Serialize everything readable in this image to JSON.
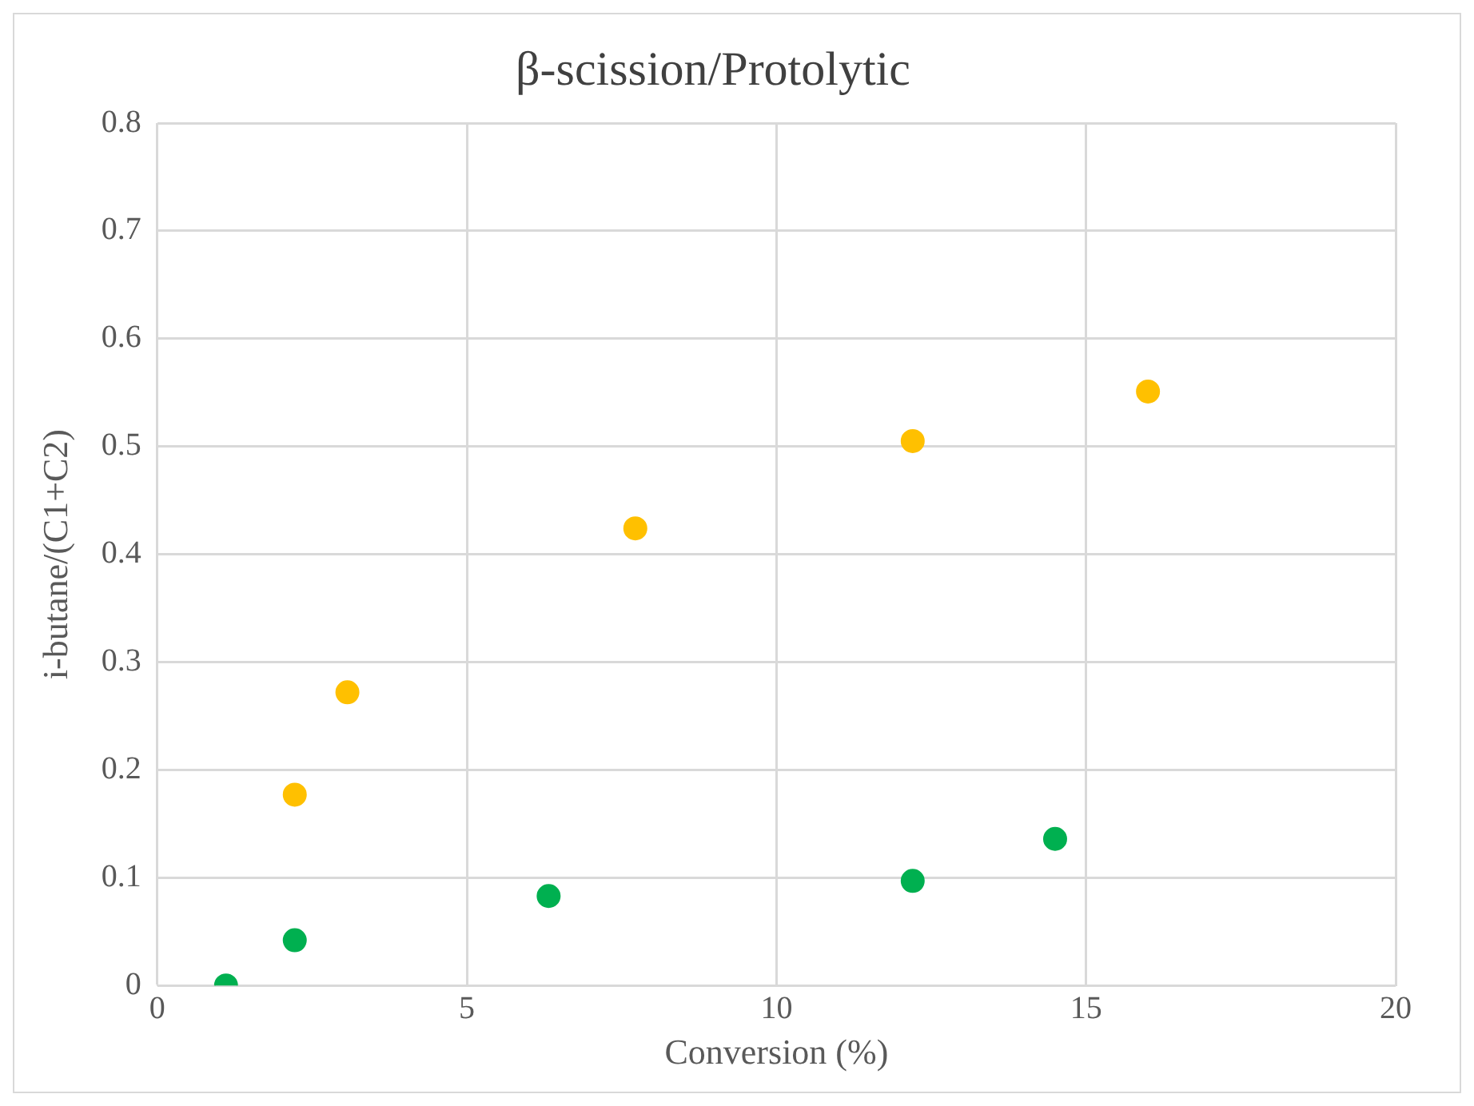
{
  "chart_data": {
    "type": "scatter",
    "title": "β-scission/Protolytic",
    "xlabel": "Conversion (%)",
    "ylabel": "i-butane/(C1+C2)",
    "series": [
      {
        "color": "#ffc000",
        "x": [
          2.22,
          3.07,
          7.72,
          12.2,
          16.0
        ],
        "values": [
          0.177,
          0.272,
          0.424,
          0.505,
          0.551
        ]
      },
      {
        "color": "#00b050",
        "x": [
          1.11,
          2.22,
          6.32,
          12.2,
          14.5
        ],
        "values": [
          0,
          0.042,
          0.083,
          0.097,
          0.136
        ]
      }
    ],
    "xlim": [
      0,
      20
    ],
    "xticks": [
      0,
      5,
      10,
      15,
      20
    ],
    "ylim": [
      0,
      0.8
    ],
    "yticks": [
      0,
      0.1,
      0.2,
      0.3,
      0.4,
      0.5,
      0.6,
      0.7,
      0.8
    ],
    "grid": true,
    "marker": "circle"
  }
}
